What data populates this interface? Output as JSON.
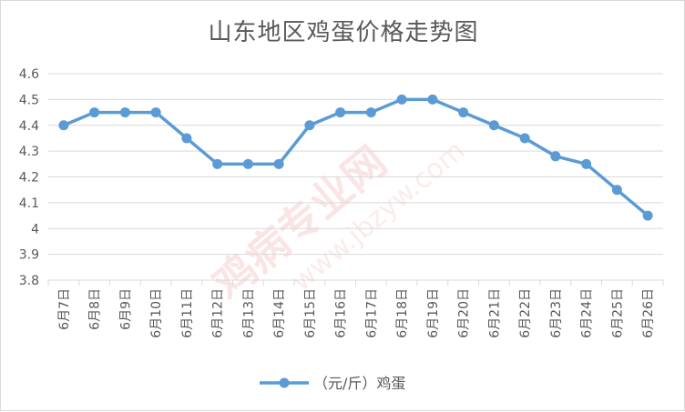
{
  "chart_data": {
    "type": "line",
    "title": "山东地区鸡蛋价格走势图",
    "categories": [
      "6月7日",
      "6月8日",
      "6月9日",
      "6月10日",
      "6月11日",
      "6月12日",
      "6月13日",
      "6月14日",
      "6月15日",
      "6月16日",
      "6月17日",
      "6月18日",
      "6月19日",
      "6月20日",
      "6月21日",
      "6月22日",
      "6月23日",
      "6月24日",
      "6月25日",
      "6月26日"
    ],
    "series": [
      {
        "name": "（元/斤）鸡蛋",
        "values": [
          4.4,
          4.45,
          4.45,
          4.45,
          4.35,
          4.25,
          4.25,
          4.25,
          4.4,
          4.45,
          4.45,
          4.5,
          4.5,
          4.45,
          4.4,
          4.35,
          4.28,
          4.25,
          4.15,
          4.05
        ],
        "color": "#5b9bd5"
      }
    ],
    "ylim": [
      3.8,
      4.6
    ],
    "yticks": [
      "3.8",
      "3.9",
      "4",
      "4.1",
      "4.2",
      "4.3",
      "4.4",
      "4.5",
      "4.6"
    ],
    "grid": true,
    "legend_position": "bottom",
    "watermark": [
      "鸡病专业网",
      "www.jbzyw.com"
    ]
  }
}
